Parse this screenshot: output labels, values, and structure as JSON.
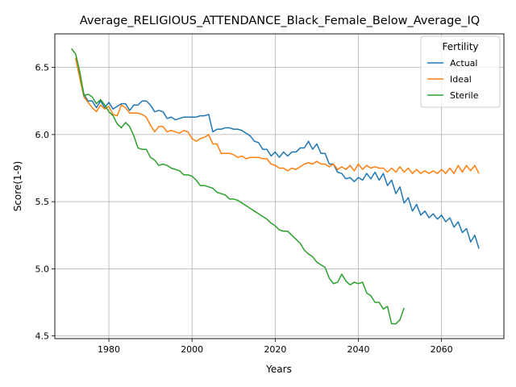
{
  "chart_data": {
    "type": "line",
    "title": "Average_RELIGIOUS_ATTENDANCE_Black_Female_Below_Average_IQ",
    "xlabel": "Years",
    "ylabel": "Score(1-9)",
    "xlim": [
      1967,
      2075
    ],
    "ylim": [
      4.48,
      6.75
    ],
    "xticks": [
      1980,
      2000,
      2020,
      2040,
      2060
    ],
    "yticks": [
      4.5,
      5.0,
      5.5,
      6.0,
      6.5
    ],
    "grid": true,
    "legend": {
      "title": "Fertility",
      "position": "top-right"
    },
    "series": [
      {
        "name": "Actual",
        "color": "#1f77b4",
        "x_start": 1972,
        "x_end": 2070,
        "values": [
          6.57,
          6.45,
          6.3,
          6.25,
          6.25,
          6.2,
          6.25,
          6.2,
          6.24,
          6.19,
          6.21,
          6.23,
          6.23,
          6.18,
          6.22,
          6.22,
          6.25,
          6.25,
          6.22,
          6.17,
          6.18,
          6.17,
          6.12,
          6.13,
          6.11,
          6.12,
          6.13,
          6.13,
          6.13,
          6.13,
          6.14,
          6.14,
          6.15,
          6.02,
          6.04,
          6.04,
          6.05,
          6.05,
          6.04,
          6.04,
          6.03,
          6.01,
          5.99,
          5.95,
          5.94,
          5.89,
          5.89,
          5.84,
          5.87,
          5.83,
          5.87,
          5.84,
          5.87,
          5.87,
          5.9,
          5.9,
          5.95,
          5.89,
          5.93,
          5.86,
          5.86,
          5.78,
          5.78,
          5.72,
          5.71,
          5.67,
          5.68,
          5.65,
          5.68,
          5.66,
          5.71,
          5.67,
          5.72,
          5.66,
          5.71,
          5.62,
          5.66,
          5.56,
          5.61,
          5.49,
          5.53,
          5.43,
          5.48,
          5.4,
          5.43,
          5.38,
          5.41,
          5.37,
          5.4,
          5.35,
          5.38,
          5.31,
          5.35,
          5.27,
          5.3,
          5.2,
          5.25,
          5.15
        ]
      },
      {
        "name": "Ideal",
        "color": "#ff7f0e",
        "x_start": 1972,
        "x_end": 2070,
        "values": [
          6.57,
          6.42,
          6.28,
          6.24,
          6.2,
          6.17,
          6.22,
          6.19,
          6.21,
          6.15,
          6.14,
          6.22,
          6.2,
          6.16,
          6.16,
          6.16,
          6.15,
          6.13,
          6.07,
          6.02,
          6.06,
          6.06,
          6.02,
          6.03,
          6.02,
          6.01,
          6.03,
          6.02,
          5.97,
          5.95,
          5.97,
          5.98,
          6.0,
          5.93,
          5.93,
          5.86,
          5.86,
          5.86,
          5.85,
          5.83,
          5.84,
          5.82,
          5.83,
          5.83,
          5.83,
          5.82,
          5.82,
          5.78,
          5.77,
          5.75,
          5.75,
          5.73,
          5.75,
          5.74,
          5.76,
          5.78,
          5.79,
          5.78,
          5.8,
          5.78,
          5.78,
          5.76,
          5.78,
          5.74,
          5.76,
          5.74,
          5.77,
          5.73,
          5.78,
          5.74,
          5.77,
          5.75,
          5.76,
          5.75,
          5.75,
          5.72,
          5.75,
          5.72,
          5.76,
          5.72,
          5.75,
          5.71,
          5.74,
          5.71,
          5.73,
          5.71,
          5.73,
          5.71,
          5.74,
          5.71,
          5.75,
          5.71,
          5.77,
          5.72,
          5.77,
          5.73,
          5.77,
          5.71
        ]
      },
      {
        "name": "Sterile",
        "color": "#2ca02c",
        "x_start": 1971,
        "x_end": 2051,
        "values": [
          6.64,
          6.6,
          6.47,
          6.29,
          6.3,
          6.28,
          6.23,
          6.26,
          6.22,
          6.17,
          6.14,
          6.08,
          6.05,
          6.09,
          6.06,
          5.99,
          5.9,
          5.89,
          5.89,
          5.83,
          5.81,
          5.77,
          5.78,
          5.77,
          5.75,
          5.74,
          5.73,
          5.7,
          5.7,
          5.69,
          5.66,
          5.62,
          5.62,
          5.61,
          5.6,
          5.57,
          5.56,
          5.55,
          5.52,
          5.52,
          5.51,
          5.49,
          5.47,
          5.45,
          5.43,
          5.41,
          5.39,
          5.37,
          5.34,
          5.32,
          5.29,
          5.28,
          5.28,
          5.25,
          5.22,
          5.19,
          5.14,
          5.11,
          5.09,
          5.05,
          5.03,
          5.01,
          4.93,
          4.89,
          4.9,
          4.96,
          4.91,
          4.88,
          4.9,
          4.89,
          4.9,
          4.82,
          4.8,
          4.75,
          4.75,
          4.7,
          4.72,
          4.59,
          4.59,
          4.62,
          4.71
        ]
      }
    ]
  }
}
